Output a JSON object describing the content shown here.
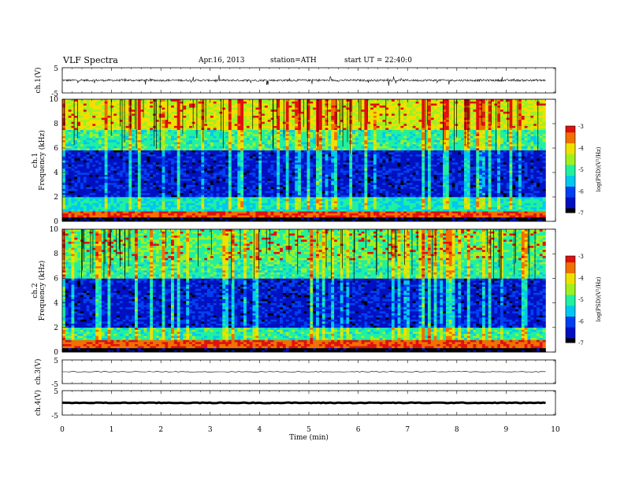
{
  "header": {
    "title": "VLF Spectra",
    "date": "Apr.16, 2013",
    "station": "station=ATH",
    "start": "start  UT =   22:40:0"
  },
  "colors": {
    "trace": "#000000",
    "colormap": [
      "#000000",
      "#0010c0",
      "#0040f0",
      "#00c8f0",
      "#20f0a0",
      "#a0f020",
      "#f0e000",
      "#f07000",
      "#e01010"
    ]
  },
  "chart_data": [
    {
      "type": "line",
      "title": "",
      "ylabel": "ch.1(V)",
      "xlabel": "",
      "xlim": [
        0,
        10
      ],
      "ylim": [
        -5,
        5
      ],
      "yticks": [
        "5",
        "-5"
      ],
      "description_values": {
        "baseline": 0,
        "duration_min": 9.8
      }
    },
    {
      "type": "heatmap",
      "ylabel": "ch.1\nFrequency (kHz)",
      "xlim": [
        0,
        10
      ],
      "ylim": [
        0,
        10
      ],
      "yticks": [
        "0",
        "2",
        "4",
        "6",
        "8",
        "10"
      ],
      "colorbar": {
        "label": "log(PSD)(V²/Hz)",
        "range": [
          -7,
          -3
        ],
        "ticks": [
          "-3",
          "-4",
          "-5",
          "-6",
          "-7"
        ]
      },
      "band_levels": [
        {
          "f_range": [
            0,
            0.3
          ],
          "log_psd": -7
        },
        {
          "f_range": [
            0.3,
            0.9
          ],
          "log_psd": -3.3
        },
        {
          "f_range": [
            0.9,
            2
          ],
          "log_psd": -5.2
        },
        {
          "f_range": [
            2,
            5.9
          ],
          "log_psd": -6.4
        },
        {
          "f_range": [
            5.9,
            7.5
          ],
          "log_psd": -5.0
        },
        {
          "f_range": [
            7.5,
            10
          ],
          "log_psd": -4.2
        }
      ]
    },
    {
      "type": "heatmap",
      "ylabel": "ch.2\nFrequency (kHz)",
      "xlim": [
        0,
        10
      ],
      "ylim": [
        0,
        10
      ],
      "yticks": [
        "0",
        "2",
        "4",
        "6",
        "8",
        "10"
      ],
      "colorbar": {
        "label": "log(PSD)(V²/Hz)",
        "range": [
          -7,
          -3
        ],
        "ticks": [
          "-3",
          "-4",
          "-5",
          "-6",
          "-7"
        ]
      },
      "band_levels": [
        {
          "f_range": [
            0,
            0.3
          ],
          "log_psd": -7
        },
        {
          "f_range": [
            0.3,
            1.0
          ],
          "log_psd": -3.3
        },
        {
          "f_range": [
            1.0,
            2
          ],
          "log_psd": -5.0
        },
        {
          "f_range": [
            2,
            6.0
          ],
          "log_psd": -6.4
        },
        {
          "f_range": [
            6.0,
            7.5
          ],
          "log_psd": -5.0
        },
        {
          "f_range": [
            7.5,
            10
          ],
          "log_psd": -4.8
        }
      ]
    },
    {
      "type": "line",
      "ylabel": "ch.3(V)",
      "xlim": [
        0,
        10
      ],
      "ylim": [
        -5,
        5
      ],
      "yticks": [
        "5",
        "-5"
      ],
      "description_values": {
        "baseline": 0
      }
    },
    {
      "type": "line",
      "ylabel": "ch.4(V)",
      "xlabel": "Time  (min)",
      "xlim": [
        0,
        10
      ],
      "ylim": [
        -5,
        5
      ],
      "yticks": [
        "5",
        "-5"
      ],
      "xticks": [
        "0",
        "1",
        "2",
        "3",
        "4",
        "5",
        "6",
        "7",
        "8",
        "9",
        "10"
      ],
      "description_values": {
        "baseline": 0
      }
    }
  ]
}
